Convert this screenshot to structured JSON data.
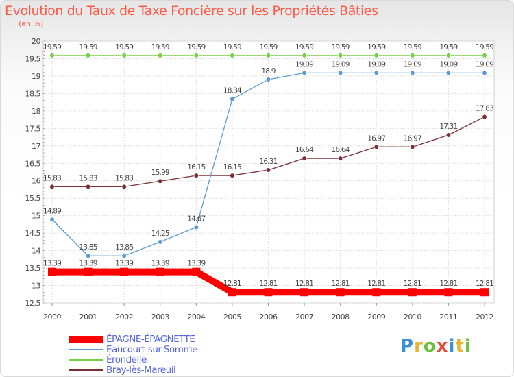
{
  "title": "Evolution du Taux de Taxe Foncière sur les Propriétés Bâties",
  "subtitle": "(en %)",
  "brand": {
    "letters": [
      "P",
      "r",
      "o",
      "x",
      "i",
      "t",
      "i"
    ],
    "colors": [
      "#3a8fd8",
      "#e8b531",
      "#6cc03c",
      "#e24a3b",
      "#3a8fd8",
      "#e8b531",
      "#6cc03c"
    ]
  },
  "chart_data": {
    "type": "line",
    "x": [
      "2000",
      "2001",
      "2002",
      "2003",
      "2004",
      "2005",
      "2006",
      "2007",
      "2008",
      "2009",
      "2010",
      "2011",
      "2012"
    ],
    "ylim": [
      12.5,
      20
    ],
    "yticks": [
      "12.5",
      "13",
      "13.5",
      "14",
      "14.5",
      "15",
      "15.5",
      "16",
      "16.5",
      "17",
      "17.5",
      "18",
      "18.5",
      "19",
      "19.5",
      "20"
    ],
    "grid": true,
    "legend_position": "bottom-left",
    "series": [
      {
        "name": "ÉPAGNE-ÉPAGNETTE",
        "color": "#ff0000",
        "values": [
          13.39,
          13.39,
          13.39,
          13.39,
          13.39,
          12.81,
          12.81,
          12.81,
          12.81,
          12.81,
          12.81,
          12.81,
          12.81
        ],
        "labels": [
          "13.39",
          "13.39",
          "13.39",
          "13.39",
          "13.39",
          "12.81",
          "12.81",
          "12.81",
          "12.81",
          "12.81",
          "12.81",
          "12.81",
          "12.81"
        ]
      },
      {
        "name": "Eaucourt-sur-Somme",
        "color": "#5b9bd5",
        "values": [
          14.89,
          13.85,
          13.85,
          14.25,
          14.67,
          18.34,
          18.9,
          19.09,
          19.09,
          19.09,
          19.09,
          19.09,
          19.09
        ],
        "labels": [
          "14.89",
          "13.85",
          "13.85",
          "14.25",
          "14.67",
          "18.34",
          "18.9",
          "19.09",
          "19.09",
          "19.09",
          "19.09",
          "19.09",
          "19.09"
        ]
      },
      {
        "name": "Érondelle",
        "color": "#77d044",
        "values": [
          19.59,
          19.59,
          19.59,
          19.59,
          19.59,
          19.59,
          19.59,
          19.59,
          19.59,
          19.59,
          19.59,
          19.59,
          19.59
        ],
        "labels": [
          "19.59",
          "19.59",
          "19.59",
          "19.59",
          "19.59",
          "19.59",
          "19.59",
          "19.59",
          "19.59",
          "19.59",
          "19.59",
          "19.59",
          "19.59"
        ]
      },
      {
        "name": "Bray-lès-Mareuil",
        "color": "#7a2e35",
        "values": [
          15.83,
          15.83,
          15.83,
          15.99,
          16.15,
          16.15,
          16.31,
          16.64,
          16.64,
          16.97,
          16.97,
          17.31,
          17.83
        ],
        "labels": [
          "15.83",
          "15.83",
          "15.83",
          "15.99",
          "16.15",
          "16.15",
          "16.31",
          "16.64",
          "16.64",
          "16.97",
          "16.97",
          "17.31",
          "17.83"
        ]
      }
    ]
  }
}
